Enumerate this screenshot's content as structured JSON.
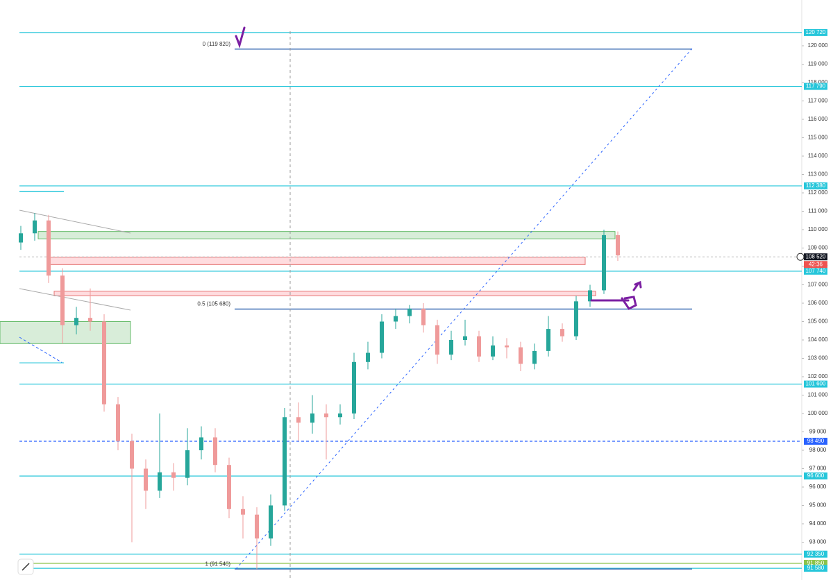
{
  "chart_data": {
    "type": "candlestick",
    "ylim": [
      90943,
      122490
    ],
    "yticks": [
      {
        "value": 93000,
        "label": "93 000"
      },
      {
        "value": 94000,
        "label": "94 000"
      },
      {
        "value": 95000,
        "label": "95 000"
      },
      {
        "value": 96000,
        "label": "96 000"
      },
      {
        "value": 97000,
        "label": "97 000"
      },
      {
        "value": 98000,
        "label": "98 000"
      },
      {
        "value": 99000,
        "label": "99 000"
      },
      {
        "value": 100000,
        "label": "100 000"
      },
      {
        "value": 101000,
        "label": "101 000"
      },
      {
        "value": 102000,
        "label": "102 000"
      },
      {
        "value": 103000,
        "label": "103 000"
      },
      {
        "value": 104000,
        "label": "104 000"
      },
      {
        "value": 105000,
        "label": "105 000"
      },
      {
        "value": 106000,
        "label": "106 000"
      },
      {
        "value": 107000,
        "label": "107 000"
      },
      {
        "value": 108000,
        "label": "108 000"
      },
      {
        "value": 109000,
        "label": "109 000"
      },
      {
        "value": 110000,
        "label": "110 000"
      },
      {
        "value": 111000,
        "label": "111 000"
      },
      {
        "value": 112000,
        "label": "112 000"
      },
      {
        "value": 113000,
        "label": "113 000"
      },
      {
        "value": 114000,
        "label": "114 000"
      },
      {
        "value": 115000,
        "label": "115 000"
      },
      {
        "value": 116000,
        "label": "116 000"
      },
      {
        "value": 117000,
        "label": "117 000"
      },
      {
        "value": 118000,
        "label": "118 000"
      },
      {
        "value": 119000,
        "label": "119 000"
      },
      {
        "value": 120000,
        "label": "120 000"
      }
    ],
    "categories": [
      null,
      null,
      null,
      null,
      null,
      null,
      null,
      null,
      null,
      null,
      null,
      null,
      null,
      null,
      null,
      null,
      null,
      null,
      null,
      null,
      null,
      null,
      null,
      null,
      null,
      null,
      null,
      null,
      null,
      null,
      null,
      null,
      null,
      null,
      null,
      null,
      null,
      null,
      null,
      null,
      null,
      null,
      null,
      null
    ],
    "open": [
      109300,
      109800,
      110500,
      107500,
      104800,
      105200,
      105000,
      100500,
      98500,
      97000,
      95800,
      96800,
      96500,
      98000,
      98700,
      97200,
      94800,
      94500,
      93200,
      95000,
      99800,
      99500,
      100000,
      99800,
      100000,
      102800,
      103300,
      105000,
      105300,
      105700,
      104800,
      103200,
      104000,
      104200,
      103100,
      103700,
      103600,
      102700,
      103400,
      104600,
      104200,
      106100,
      106700,
      109700
    ],
    "high": [
      110200,
      110900,
      110800,
      107900,
      105800,
      106800,
      105400,
      100900,
      98900,
      97500,
      100000,
      97300,
      99200,
      99300,
      99200,
      97600,
      95500,
      94900,
      95600,
      100300,
      100600,
      101000,
      100500,
      100500,
      103300,
      103900,
      105400,
      105700,
      105900,
      106000,
      105100,
      104500,
      105100,
      104500,
      104200,
      104100,
      103900,
      103800,
      105300,
      104900,
      106400,
      107000,
      110000,
      109900
    ],
    "low": [
      108900,
      109400,
      107100,
      103800,
      104300,
      104500,
      100100,
      98000,
      93000,
      94800,
      95400,
      95800,
      96100,
      97500,
      96800,
      94300,
      93200,
      91540,
      92800,
      94700,
      98500,
      98900,
      97500,
      99400,
      99700,
      102400,
      103000,
      104600,
      104900,
      104400,
      102700,
      102900,
      103700,
      102800,
      102900,
      103000,
      102300,
      102400,
      103100,
      103900,
      104000,
      105800,
      106500,
      108300
    ],
    "close": [
      109800,
      110500,
      107500,
      104800,
      105200,
      105000,
      100500,
      98500,
      97000,
      95800,
      96800,
      96500,
      98000,
      98700,
      97200,
      94800,
      94500,
      93200,
      95000,
      99800,
      99500,
      100000,
      99800,
      100000,
      102800,
      103300,
      105000,
      105300,
      105700,
      104800,
      103200,
      104000,
      104200,
      103100,
      103700,
      103600,
      102700,
      103400,
      104600,
      104200,
      106100,
      106700,
      109700,
      108600
    ],
    "up_color": "#26a69a",
    "down_color": "#ef9a9a",
    "levels": [
      {
        "value": 120720,
        "label": "120 720",
        "color": "#26c6da"
      },
      {
        "value": 117790,
        "label": "117 790",
        "color": "#26c6da"
      },
      {
        "value": 112380,
        "label": "112 380",
        "color": "#26c6da"
      },
      {
        "value": 107740,
        "label": "107 740",
        "color": "#26c6da"
      },
      {
        "value": 101600,
        "label": "101 600",
        "color": "#26c6da"
      },
      {
        "value": 98490,
        "label": "98 490",
        "color": "#2962ff"
      },
      {
        "value": 96600,
        "label": "96 600",
        "color": "#26c6da"
      },
      {
        "value": 92350,
        "label": "92 350",
        "color": "#26c6da"
      },
      {
        "value": 91850,
        "label": "91 850",
        "color": "#8bc34a"
      },
      {
        "value": 91580,
        "label": "91 580",
        "color": "#26c6da"
      }
    ],
    "price": {
      "value": 108520,
      "label": "108 520",
      "countdown": "42:36"
    },
    "fib": [
      {
        "value": 119820,
        "label": "0 (119 820)"
      },
      {
        "value": 105680,
        "label": "0.5 (105 680)"
      },
      {
        "value": 91540,
        "label": "1 (91 540)"
      }
    ],
    "zones": [
      {
        "top": 109900,
        "bottom": 109500,
        "color": "#c8e6c9"
      },
      {
        "top": 108500,
        "bottom": 108100,
        "color": "#ffcdd2"
      },
      {
        "top": 106650,
        "bottom": 106400,
        "color": "#ffcdd2"
      },
      {
        "top": 105000,
        "bottom": 103800,
        "color": "#c8e6c9"
      }
    ]
  }
}
